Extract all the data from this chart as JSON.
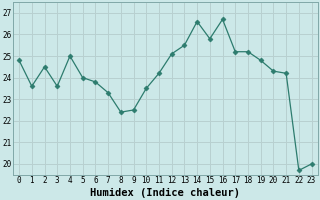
{
  "x": [
    0,
    1,
    2,
    3,
    4,
    5,
    6,
    7,
    8,
    9,
    10,
    11,
    12,
    13,
    14,
    15,
    16,
    17,
    18,
    19,
    20,
    21,
    22,
    23
  ],
  "y": [
    24.8,
    23.6,
    24.5,
    23.6,
    25.0,
    24.0,
    23.8,
    23.3,
    22.4,
    22.5,
    23.5,
    24.2,
    25.1,
    25.5,
    26.6,
    25.8,
    26.7,
    25.2,
    25.2,
    24.8,
    24.3,
    24.2,
    19.7,
    20.0
  ],
  "line_color": "#2d7c6e",
  "marker": "D",
  "marker_size": 2.5,
  "bg_color": "#cce8e8",
  "grid_color": "#b8d0d0",
  "xlabel": "Humidex (Indice chaleur)",
  "ylim": [
    19.5,
    27.5
  ],
  "yticks": [
    20,
    21,
    22,
    23,
    24,
    25,
    26,
    27
  ],
  "xticks": [
    0,
    1,
    2,
    3,
    4,
    5,
    6,
    7,
    8,
    9,
    10,
    11,
    12,
    13,
    14,
    15,
    16,
    17,
    18,
    19,
    20,
    21,
    22,
    23
  ],
  "tick_fontsize": 5.5,
  "xlabel_fontsize": 7.5,
  "xlim": [
    -0.5,
    23.5
  ]
}
